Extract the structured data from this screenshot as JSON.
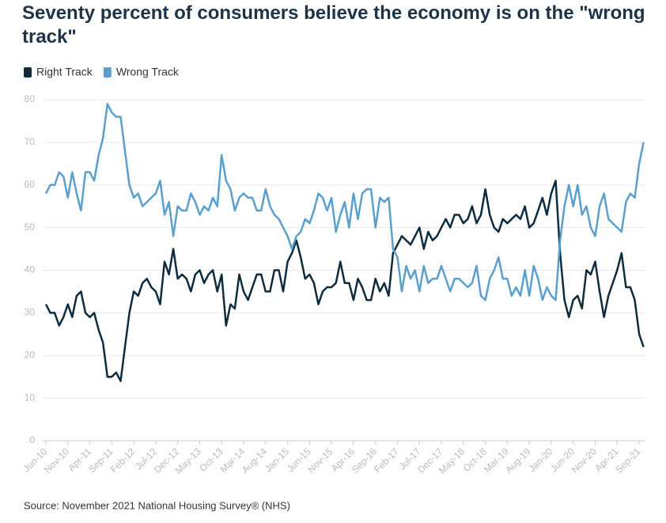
{
  "chart_data": {
    "type": "line",
    "title": "Seventy percent of consumers believe the economy is on the \"wrong track\"",
    "source": "Source: November 2021 National Housing Survey® (NHS)",
    "categories": [
      "Jun-10",
      null,
      null,
      null,
      null,
      "Nov-10",
      null,
      null,
      null,
      null,
      "Apr-11",
      null,
      null,
      null,
      null,
      "Sep-11",
      null,
      null,
      null,
      null,
      "Feb-12",
      null,
      null,
      null,
      null,
      "Jul-12",
      null,
      null,
      null,
      null,
      "Dec-12",
      null,
      null,
      null,
      null,
      "May-13",
      null,
      null,
      null,
      null,
      "Oct-13",
      null,
      null,
      null,
      null,
      "Mar-14",
      null,
      null,
      null,
      null,
      "Aug-14",
      null,
      null,
      null,
      null,
      "Jan-15",
      null,
      null,
      null,
      null,
      "Jun-15",
      null,
      null,
      null,
      null,
      "Nov-15",
      null,
      null,
      null,
      null,
      "Apr-16",
      null,
      null,
      null,
      null,
      "Sep-16",
      null,
      null,
      null,
      null,
      "Feb-17",
      null,
      null,
      null,
      null,
      "Jul-17",
      null,
      null,
      null,
      null,
      "Dec-17",
      null,
      null,
      null,
      null,
      "May-18",
      null,
      null,
      null,
      null,
      "Oct-18",
      null,
      null,
      null,
      null,
      "Mar-19",
      null,
      null,
      null,
      null,
      "Aug-19",
      null,
      null,
      null,
      null,
      "Jan-20",
      null,
      null,
      null,
      null,
      "Jun-20",
      null,
      null,
      null,
      null,
      "Nov-20",
      null,
      null,
      null,
      null,
      "Apr-21",
      null,
      null,
      null,
      null,
      "Sep-21",
      null
    ],
    "series": [
      {
        "name": "Right Track",
        "color": "#0d2c40",
        "values": [
          32,
          30,
          30,
          27,
          29,
          32,
          29,
          34,
          35,
          30,
          29,
          30,
          26,
          23,
          15,
          15,
          16,
          14,
          22,
          30,
          35,
          34,
          37,
          38,
          36,
          35,
          32,
          42,
          39,
          45,
          38,
          39,
          38,
          35,
          39,
          40,
          37,
          39,
          40,
          35,
          39,
          27,
          32,
          31,
          39,
          35,
          33,
          36,
          39,
          39,
          35,
          35,
          40,
          40,
          35,
          42,
          44,
          47,
          43,
          38,
          39,
          37,
          32,
          35,
          36,
          36,
          37,
          42,
          37,
          37,
          33,
          38,
          36,
          33,
          33,
          38,
          35,
          37,
          34,
          44,
          46,
          48,
          47,
          46,
          48,
          50,
          45,
          49,
          47,
          48,
          50,
          52,
          50,
          53,
          53,
          51,
          52,
          55,
          51,
          53,
          59,
          53,
          50,
          49,
          52,
          51,
          52,
          53,
          52,
          55,
          50,
          51,
          54,
          57,
          53,
          58,
          61,
          44,
          33,
          29,
          33,
          34,
          31,
          40,
          39,
          42,
          35,
          29,
          34,
          37,
          40,
          44,
          36,
          36,
          33,
          25,
          22
        ]
      },
      {
        "name": "Wrong Track",
        "color": "#5aa0cf",
        "values": [
          58,
          60,
          60,
          63,
          62,
          57,
          63,
          58,
          54,
          63,
          63,
          61,
          67,
          71,
          79,
          77,
          76,
          76,
          68,
          60,
          57,
          58,
          55,
          56,
          57,
          58,
          61,
          53,
          56,
          48,
          55,
          54,
          54,
          58,
          56,
          53,
          55,
          54,
          57,
          55,
          67,
          61,
          59,
          54,
          57,
          58,
          57,
          57,
          54,
          54,
          59,
          55,
          53,
          52,
          50,
          48,
          45,
          48,
          49,
          52,
          51,
          54,
          58,
          57,
          54,
          57,
          49,
          53,
          56,
          50,
          58,
          52,
          58,
          59,
          59,
          50,
          57,
          56,
          57,
          45,
          43,
          35,
          41,
          38,
          40,
          35,
          41,
          37,
          38,
          38,
          41,
          38,
          35,
          38,
          38,
          37,
          36,
          37,
          41,
          34,
          33,
          38,
          40,
          43,
          38,
          38,
          34,
          36,
          34,
          40,
          34,
          41,
          38,
          33,
          36,
          34,
          33,
          47,
          55,
          60,
          55,
          60,
          53,
          55,
          50,
          48,
          55,
          58,
          52,
          51,
          50,
          49,
          56,
          58,
          57,
          65,
          70
        ]
      }
    ],
    "ylim": [
      0,
      80
    ],
    "yticks": [
      0,
      10,
      20,
      30,
      40,
      50,
      60,
      70,
      80
    ],
    "grid": true
  }
}
